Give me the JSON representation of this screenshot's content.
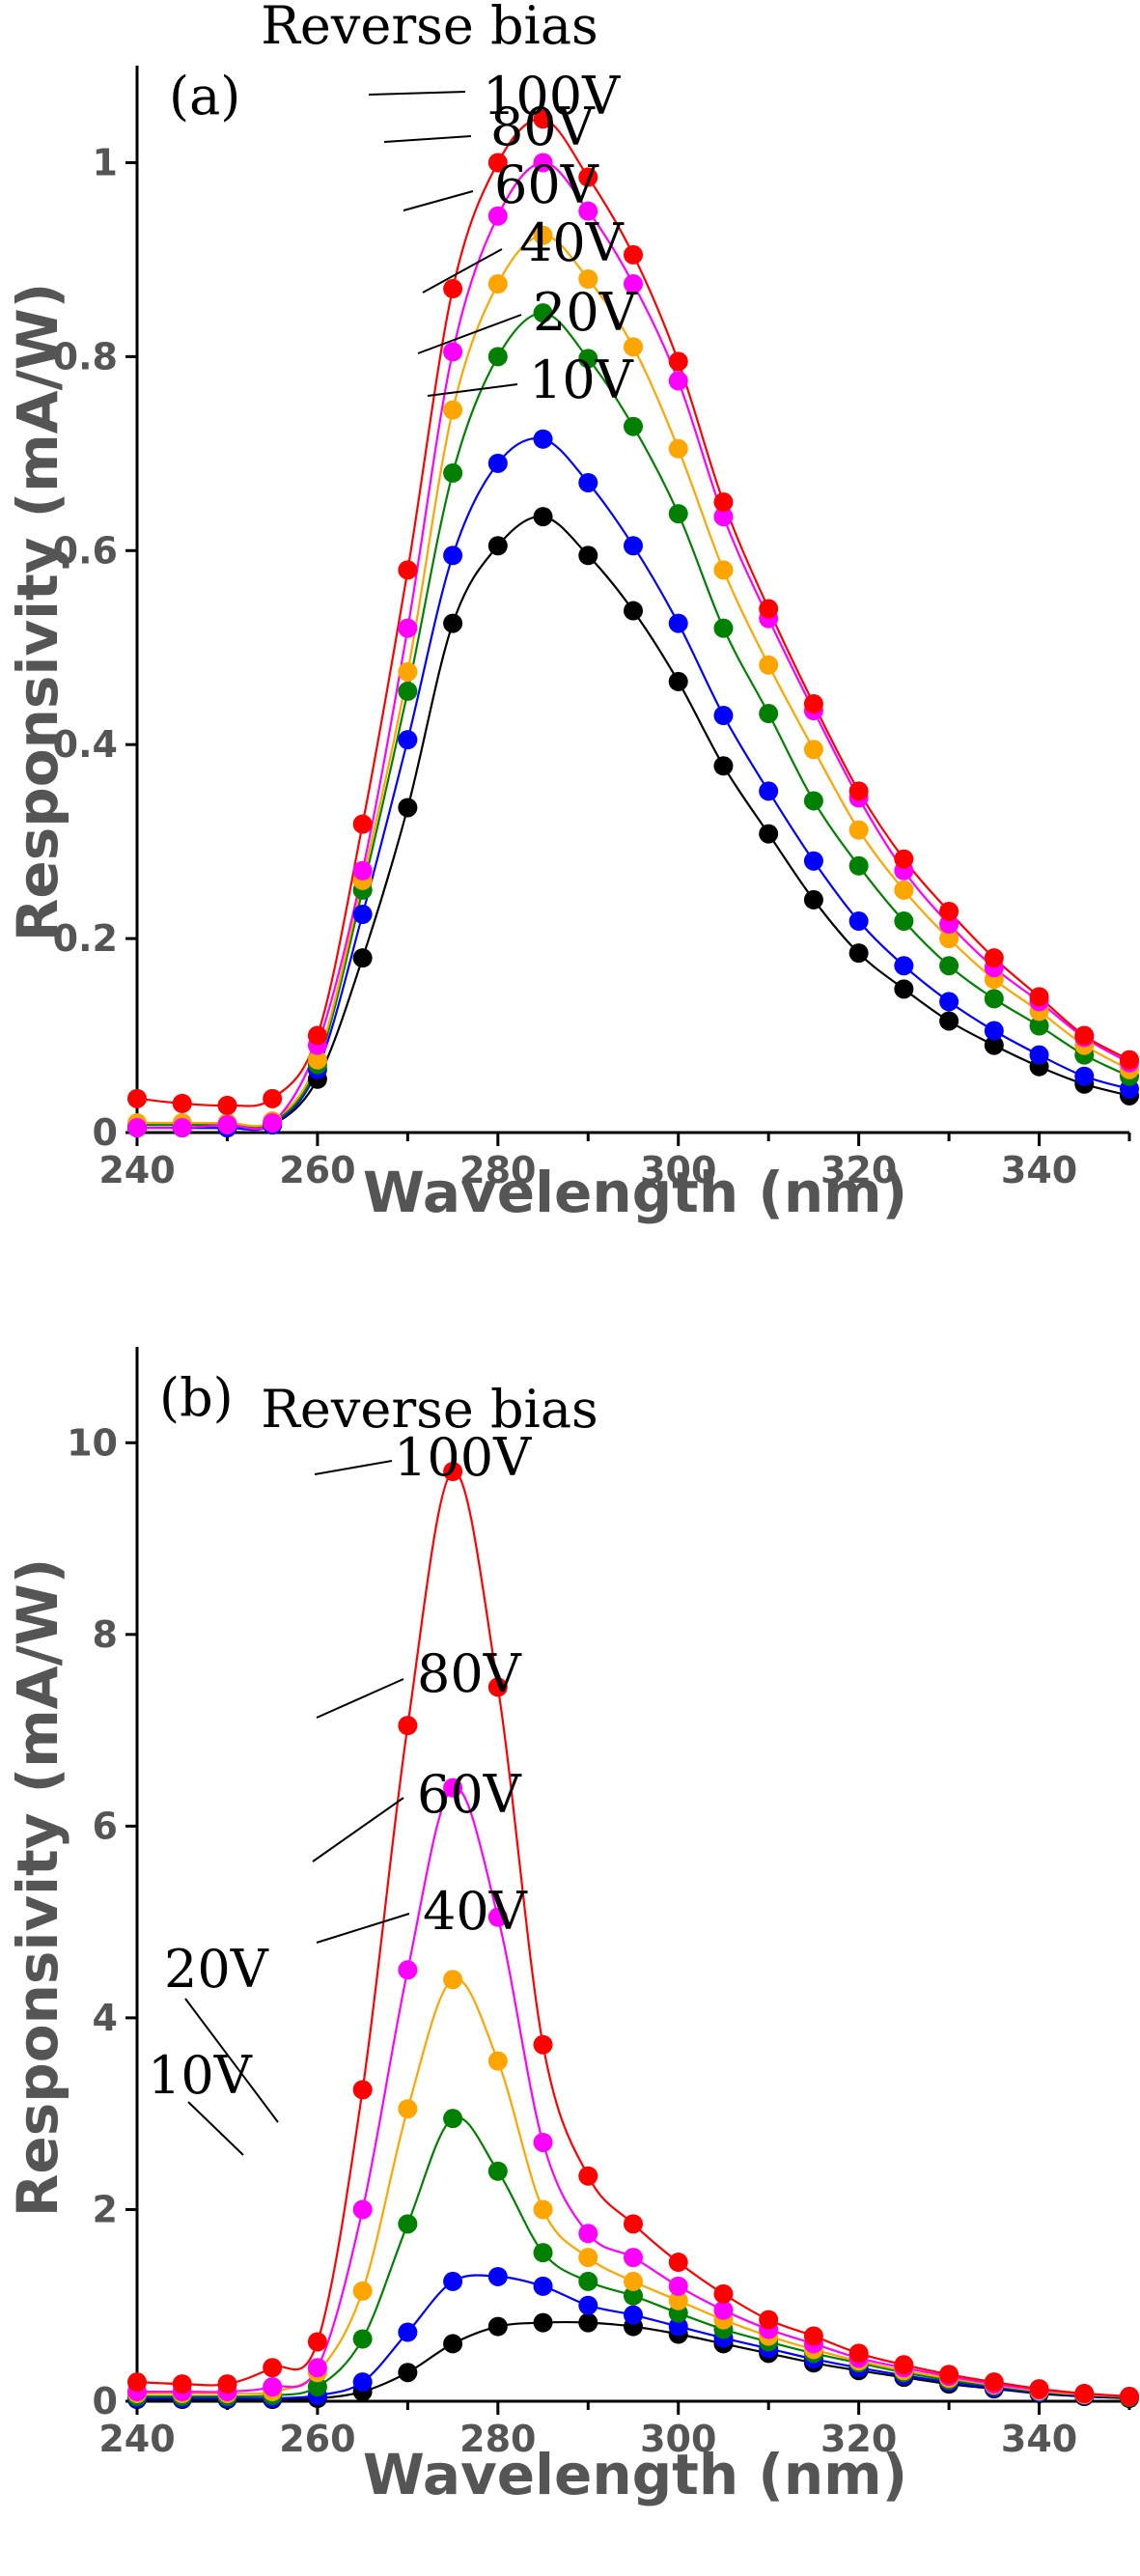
{
  "chart_data": [
    {
      "id": "a",
      "type": "line",
      "panel_label": "(a)",
      "legend_title": "Reverse bias",
      "xlabel": "Wavelength (nm)",
      "ylabel": "Responsivity (mA/W)",
      "xlim": [
        240,
        350
      ],
      "ylim": [
        0,
        1.1
      ],
      "xticks": [
        240,
        260,
        280,
        300,
        320,
        340
      ],
      "yticks": [
        0,
        0.2,
        0.4,
        0.6,
        0.8,
        1
      ],
      "ytick_labels": [
        "0",
        "0.2",
        "0.4",
        "0.6",
        "0.8",
        "1"
      ],
      "x": [
        240,
        245,
        250,
        255,
        260,
        265,
        270,
        275,
        280,
        285,
        290,
        295,
        300,
        305,
        310,
        315,
        320,
        325,
        330,
        335,
        340,
        345,
        350
      ],
      "series": [
        {
          "name": "10V",
          "color": "#000000",
          "values": [
            0.005,
            0.005,
            0.005,
            0.008,
            0.055,
            0.18,
            0.335,
            0.525,
            0.605,
            0.635,
            0.595,
            0.538,
            0.465,
            0.378,
            0.308,
            0.24,
            0.185,
            0.148,
            0.115,
            0.09,
            0.068,
            0.05,
            0.038
          ]
        },
        {
          "name": "20V",
          "color": "#0000ff",
          "values": [
            0.005,
            0.005,
            0.005,
            0.008,
            0.065,
            0.225,
            0.405,
            0.595,
            0.69,
            0.715,
            0.67,
            0.605,
            0.525,
            0.43,
            0.352,
            0.28,
            0.218,
            0.172,
            0.135,
            0.105,
            0.08,
            0.058,
            0.045
          ]
        },
        {
          "name": "40V",
          "color": "#008000",
          "values": [
            0.008,
            0.008,
            0.008,
            0.01,
            0.07,
            0.25,
            0.455,
            0.68,
            0.8,
            0.845,
            0.798,
            0.728,
            0.638,
            0.52,
            0.432,
            0.342,
            0.275,
            0.218,
            0.172,
            0.138,
            0.11,
            0.08,
            0.058
          ]
        },
        {
          "name": "60V",
          "color": "#ffa500",
          "values": [
            0.01,
            0.01,
            0.01,
            0.012,
            0.075,
            0.26,
            0.475,
            0.745,
            0.875,
            0.925,
            0.88,
            0.81,
            0.705,
            0.58,
            0.482,
            0.395,
            0.312,
            0.25,
            0.2,
            0.158,
            0.125,
            0.09,
            0.065
          ]
        },
        {
          "name": "80V",
          "color": "#ff00ff",
          "values": [
            0.005,
            0.005,
            0.008,
            0.01,
            0.09,
            0.27,
            0.52,
            0.805,
            0.945,
            1.0,
            0.95,
            0.875,
            0.775,
            0.635,
            0.53,
            0.435,
            0.345,
            0.27,
            0.215,
            0.17,
            0.135,
            0.098,
            0.072
          ]
        },
        {
          "name": "100V",
          "color": "#ff0000",
          "values": [
            0.035,
            0.03,
            0.028,
            0.035,
            0.1,
            0.318,
            0.58,
            0.87,
            1.0,
            1.045,
            0.985,
            0.905,
            0.795,
            0.65,
            0.54,
            0.442,
            0.352,
            0.282,
            0.228,
            0.18,
            0.14,
            0.1,
            0.075
          ]
        }
      ]
    },
    {
      "id": "b",
      "type": "line",
      "panel_label": "(b)",
      "legend_title": "Reverse bias",
      "xlabel": "Wavelength (nm)",
      "ylabel": "Responsivity (mA/W)",
      "xlim": [
        240,
        350
      ],
      "ylim": [
        0,
        11
      ],
      "xticks": [
        240,
        260,
        280,
        300,
        320,
        340
      ],
      "yticks": [
        0,
        2,
        4,
        6,
        8,
        10
      ],
      "ytick_labels": [
        "0",
        "2",
        "4",
        "6",
        "8",
        "10"
      ],
      "x": [
        240,
        245,
        250,
        255,
        260,
        265,
        270,
        275,
        280,
        285,
        290,
        295,
        300,
        305,
        310,
        315,
        320,
        325,
        330,
        335,
        340,
        345,
        350
      ],
      "series": [
        {
          "name": "10V",
          "color": "#000000",
          "values": [
            0.02,
            0.02,
            0.02,
            0.02,
            0.03,
            0.1,
            0.3,
            0.6,
            0.78,
            0.82,
            0.82,
            0.78,
            0.7,
            0.6,
            0.5,
            0.4,
            0.32,
            0.25,
            0.18,
            0.13,
            0.08,
            0.05,
            0.03
          ]
        },
        {
          "name": "20V",
          "color": "#0000ff",
          "values": [
            0.03,
            0.03,
            0.03,
            0.03,
            0.06,
            0.2,
            0.72,
            1.25,
            1.3,
            1.2,
            1.0,
            0.9,
            0.78,
            0.66,
            0.55,
            0.44,
            0.35,
            0.27,
            0.2,
            0.14,
            0.09,
            0.06,
            0.04
          ]
        },
        {
          "name": "40V",
          "color": "#008000",
          "values": [
            0.05,
            0.05,
            0.05,
            0.06,
            0.15,
            0.65,
            1.85,
            2.95,
            2.4,
            1.55,
            1.25,
            1.1,
            0.92,
            0.75,
            0.62,
            0.5,
            0.4,
            0.3,
            0.22,
            0.16,
            0.1,
            0.07,
            0.04
          ]
        },
        {
          "name": "60V",
          "color": "#ffa500",
          "values": [
            0.08,
            0.08,
            0.08,
            0.1,
            0.3,
            1.15,
            3.05,
            4.4,
            3.55,
            2.0,
            1.5,
            1.25,
            1.05,
            0.85,
            0.68,
            0.54,
            0.42,
            0.32,
            0.24,
            0.17,
            0.11,
            0.07,
            0.05
          ]
        },
        {
          "name": "80V",
          "color": "#ff00ff",
          "values": [
            0.1,
            0.1,
            0.1,
            0.15,
            0.35,
            2.0,
            4.5,
            6.4,
            5.05,
            2.7,
            1.75,
            1.5,
            1.2,
            0.95,
            0.75,
            0.6,
            0.45,
            0.35,
            0.26,
            0.18,
            0.12,
            0.08,
            0.05
          ]
        },
        {
          "name": "100V",
          "color": "#ff0000",
          "values": [
            0.2,
            0.18,
            0.18,
            0.35,
            0.62,
            3.25,
            7.05,
            9.7,
            7.45,
            3.72,
            2.35,
            1.85,
            1.45,
            1.12,
            0.85,
            0.68,
            0.5,
            0.38,
            0.28,
            0.2,
            0.13,
            0.08,
            0.05
          ]
        }
      ]
    }
  ]
}
